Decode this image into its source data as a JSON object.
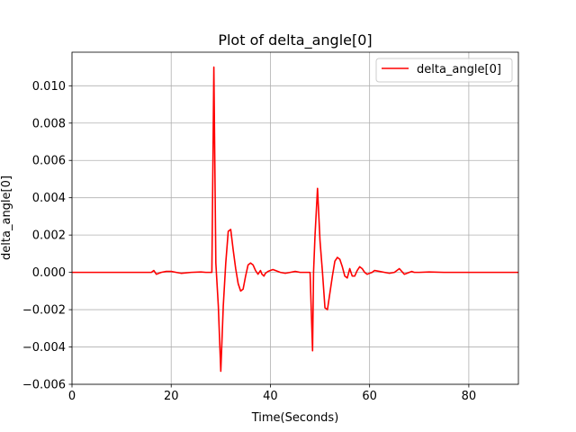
{
  "chart_data": {
    "type": "line",
    "title": "Plot of delta_angle[0]",
    "xlabel": "Time(Seconds)",
    "ylabel": "delta_angle[0]",
    "xlim": [
      0,
      90
    ],
    "ylim": [
      -0.006,
      0.0118
    ],
    "grid": true,
    "legend_position": "top-right",
    "x_ticks": [
      0,
      20,
      40,
      60,
      80
    ],
    "x_tick_labels": [
      "0",
      "20",
      "40",
      "60",
      "80"
    ],
    "y_ticks": [
      -0.006,
      -0.004,
      -0.002,
      0.0,
      0.002,
      0.004,
      0.006,
      0.008,
      0.01
    ],
    "y_tick_labels": [
      "−0.006",
      "−0.004",
      "−0.002",
      "0.000",
      "0.002",
      "0.004",
      "0.006",
      "0.008",
      "0.010"
    ],
    "series": [
      {
        "name": "delta_angle[0]",
        "color": "#ff0000",
        "x": [
          0,
          10,
          16,
          16.5,
          17,
          17.5,
          18,
          19,
          20,
          21,
          22,
          24,
          26,
          27,
          28.2,
          28.6,
          29,
          29.5,
          30,
          30.5,
          31,
          31.5,
          32,
          32.5,
          33,
          33.5,
          34,
          34.5,
          35,
          35.5,
          36,
          36.5,
          37,
          37.5,
          38,
          38.3,
          38.7,
          39,
          39.5,
          40,
          40.5,
          41,
          42,
          43,
          44,
          45,
          46,
          47,
          48,
          48.5,
          48.7,
          49,
          49.5,
          50,
          50.5,
          51,
          51.5,
          52,
          52.5,
          53,
          53.5,
          54,
          54.5,
          55,
          55.5,
          56,
          56.5,
          57,
          57.5,
          58,
          58.5,
          59,
          59.5,
          60,
          60.5,
          61,
          62,
          63,
          64,
          65,
          66,
          67,
          68,
          68.5,
          69,
          70,
          72,
          75,
          80,
          85,
          90
        ],
        "y": [
          0,
          0,
          0,
          0.0001,
          -0.0001,
          -5e-05,
          0,
          5e-05,
          5e-05,
          0,
          -5e-05,
          0,
          2e-05,
          0,
          0,
          0.011,
          0.0005,
          -0.0018,
          -0.0053,
          -0.0018,
          0.0005,
          0.0022,
          0.0023,
          0.0012,
          0.0002,
          -0.0006,
          -0.001,
          -0.0009,
          -0.0002,
          0.0004,
          0.0005,
          0.0004,
          0.0001,
          -0.0001,
          0.0001,
          -0.0001,
          -0.0002,
          -5e-05,
          5e-05,
          0.0001,
          0.00015,
          0.0001,
          0,
          -5e-05,
          0,
          5e-05,
          0,
          0,
          0,
          -0.0042,
          0,
          0.002,
          0.0045,
          0.0017,
          0,
          -0.0019,
          -0.002,
          -0.0011,
          -0.0002,
          0.0006,
          0.0008,
          0.0007,
          0.0003,
          -0.0002,
          -0.0003,
          0.0002,
          -0.0002,
          -0.0002,
          0.0001,
          0.0003,
          0.0002,
          0,
          -0.0001,
          -5e-05,
          0,
          0.0001,
          5e-05,
          0,
          -5e-05,
          0,
          0.0002,
          -0.0001,
          0,
          5e-05,
          0,
          0,
          2e-05,
          0,
          0,
          0,
          0
        ]
      }
    ]
  }
}
